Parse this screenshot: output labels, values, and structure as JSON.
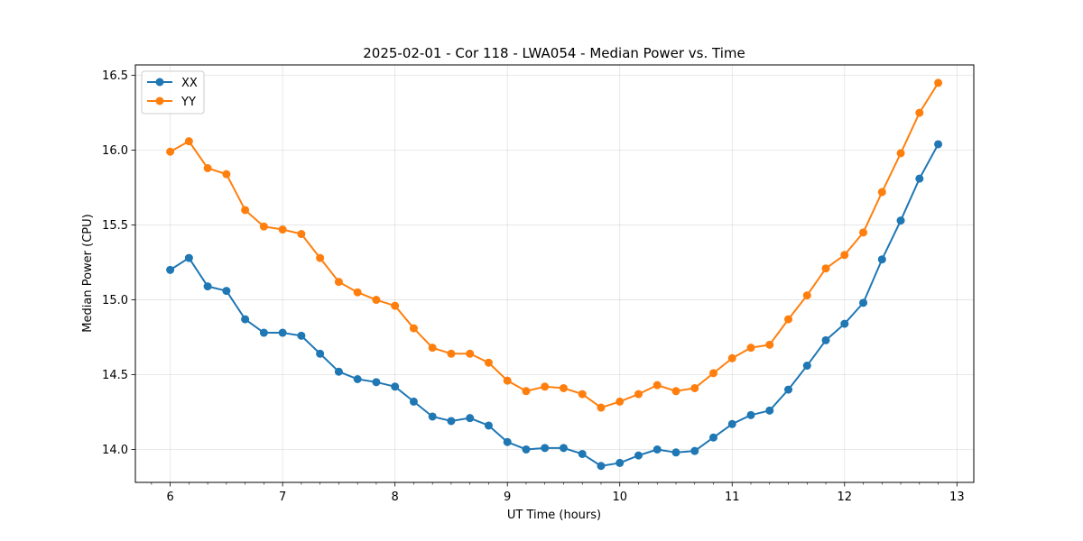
{
  "chart_data": {
    "type": "line",
    "title": "2025-02-01 - Cor 118 - LWA054 - Median Power vs. Time",
    "xlabel": "UT Time (hours)",
    "ylabel": "Median Power (CPU)",
    "xlim": [
      5.69,
      13.15
    ],
    "ylim": [
      13.78,
      16.57
    ],
    "xticks": [
      6,
      7,
      8,
      9,
      10,
      11,
      12,
      13
    ],
    "yticks": [
      14.0,
      14.5,
      15.0,
      15.5,
      16.0,
      16.5
    ],
    "ytick_labels": [
      "14.0",
      "14.5",
      "15.0",
      "15.5",
      "16.0",
      "16.5"
    ],
    "grid": true,
    "legend_position": "upper-left",
    "x": [
      6.0,
      6.1667,
      6.3333,
      6.5,
      6.6667,
      6.8333,
      7.0,
      7.1667,
      7.3333,
      7.5,
      7.6667,
      7.8333,
      8.0,
      8.1667,
      8.3333,
      8.5,
      8.6667,
      8.8333,
      9.0,
      9.1667,
      9.3333,
      9.5,
      9.6667,
      9.8333,
      10.0,
      10.1667,
      10.3333,
      10.5,
      10.6667,
      10.8333,
      11.0,
      11.1667,
      11.3333,
      11.5,
      11.6667,
      11.8333,
      12.0,
      12.1667,
      12.3333,
      12.5,
      12.6667,
      12.8333
    ],
    "series": [
      {
        "name": "XX",
        "color": "#1f77b4",
        "values": [
          15.2,
          15.28,
          15.09,
          15.06,
          14.87,
          14.78,
          14.78,
          14.76,
          14.64,
          14.52,
          14.47,
          14.45,
          14.42,
          14.32,
          14.22,
          14.19,
          14.21,
          14.16,
          14.05,
          14.0,
          14.01,
          14.01,
          13.97,
          13.89,
          13.91,
          13.96,
          14.0,
          13.98,
          13.99,
          14.08,
          14.17,
          14.23,
          14.26,
          14.4,
          14.56,
          14.73,
          14.84,
          14.98,
          15.27,
          15.53,
          15.81,
          16.04
        ]
      },
      {
        "name": "YY",
        "color": "#ff7f0e",
        "values": [
          15.99,
          16.06,
          15.88,
          15.84,
          15.6,
          15.49,
          15.47,
          15.44,
          15.28,
          15.12,
          15.05,
          15.0,
          14.96,
          14.81,
          14.68,
          14.64,
          14.64,
          14.58,
          14.46,
          14.39,
          14.42,
          14.41,
          14.37,
          14.28,
          14.32,
          14.37,
          14.43,
          14.39,
          14.41,
          14.51,
          14.61,
          14.68,
          14.7,
          14.87,
          15.03,
          15.21,
          15.3,
          15.45,
          15.72,
          15.98,
          16.25,
          16.45
        ]
      }
    ]
  }
}
